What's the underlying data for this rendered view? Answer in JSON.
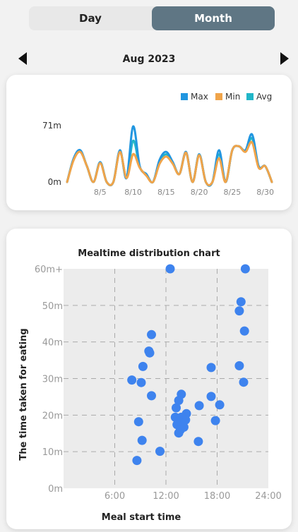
{
  "tabs": {
    "day": "Day",
    "month": "Month"
  },
  "period": {
    "label": "Aug 2023"
  },
  "chart_data": [
    {
      "type": "line",
      "legend": {
        "placement": "top-right",
        "items": [
          "Max",
          "Min",
          "Avg"
        ]
      },
      "colors": {
        "Max": "#2196e0",
        "Min": "#f0a44a",
        "Avg": "#21b6c8"
      },
      "y_tick_labels": [
        "71m",
        "0m"
      ],
      "ylim": [
        0,
        71
      ],
      "x_tick_labels": [
        "8/5",
        "8/10",
        "8/15",
        "8/20",
        "8/25",
        "8/30"
      ],
      "x_ticks": [
        5,
        10,
        15,
        20,
        25,
        30
      ],
      "xlim": [
        0,
        31
      ],
      "x": [
        0,
        1,
        2,
        3,
        4,
        5,
        6,
        7,
        8,
        9,
        10,
        11,
        12,
        13,
        14,
        15,
        16,
        17,
        18,
        19,
        20,
        21,
        22,
        23,
        24,
        25,
        26,
        27,
        28,
        29,
        30,
        31
      ],
      "series": [
        {
          "name": "Max",
          "values": [
            0,
            30,
            40,
            20,
            0,
            25,
            0,
            0,
            40,
            5,
            70,
            20,
            10,
            0,
            28,
            38,
            25,
            10,
            38,
            0,
            35,
            0,
            0,
            40,
            0,
            40,
            45,
            40,
            60,
            20,
            20,
            0
          ]
        },
        {
          "name": "Min",
          "values": [
            0,
            28,
            38,
            20,
            0,
            24,
            0,
            0,
            38,
            5,
            35,
            18,
            8,
            0,
            23,
            32,
            23,
            10,
            37,
            0,
            34,
            0,
            0,
            30,
            0,
            40,
            45,
            38,
            50,
            18,
            20,
            0
          ]
        },
        {
          "name": "Avg",
          "values": [
            0,
            29,
            39,
            20,
            0,
            25,
            0,
            0,
            39,
            5,
            52,
            19,
            9,
            0,
            25,
            35,
            24,
            10,
            37,
            0,
            35,
            0,
            0,
            35,
            0,
            40,
            45,
            39,
            55,
            19,
            20,
            0
          ]
        }
      ]
    },
    {
      "type": "scatter",
      "title": "Mealtime distribution chart",
      "xlabel": "Meal start time",
      "ylabel": "The time taken for eating",
      "x_tick_labels": [
        "6:00",
        "12:00",
        "18:00",
        "24:00"
      ],
      "x_ticks": [
        6,
        12,
        18,
        24
      ],
      "xlim": [
        0,
        24
      ],
      "y_tick_labels": [
        "0m",
        "10m",
        "20m",
        "30m",
        "40m",
        "50m",
        "60m+"
      ],
      "y_ticks": [
        0,
        10,
        20,
        30,
        40,
        50,
        60
      ],
      "ylim": [
        0,
        60
      ],
      "grid": true,
      "color": "#3e83ee",
      "points": [
        [
          12.5,
          60
        ],
        [
          21.3,
          60
        ],
        [
          20.8,
          51
        ],
        [
          20.6,
          48.5
        ],
        [
          21.2,
          43
        ],
        [
          10.3,
          42
        ],
        [
          10.0,
          37.5
        ],
        [
          10.1,
          37
        ],
        [
          9.3,
          33.3
        ],
        [
          17.3,
          33
        ],
        [
          20.6,
          33.5
        ],
        [
          8.0,
          29.6
        ],
        [
          9.1,
          28.9
        ],
        [
          21.1,
          29
        ],
        [
          10.3,
          25.3
        ],
        [
          13.8,
          25.7
        ],
        [
          17.3,
          25.1
        ],
        [
          13.5,
          24
        ],
        [
          18.3,
          22.8
        ],
        [
          15.9,
          22.6
        ],
        [
          13.2,
          22
        ],
        [
          14.4,
          20.4
        ],
        [
          13.1,
          19.4
        ],
        [
          13.8,
          19.4
        ],
        [
          14.3,
          18.7
        ],
        [
          13.6,
          18.1
        ],
        [
          17.8,
          18.5
        ],
        [
          13.3,
          17.4
        ],
        [
          8.8,
          18.2
        ],
        [
          14.1,
          16.7
        ],
        [
          13.7,
          16
        ],
        [
          13.5,
          15.1
        ],
        [
          15.8,
          12.8
        ],
        [
          9.2,
          13.1
        ],
        [
          11.3,
          10.1
        ],
        [
          8.6,
          7.6
        ]
      ]
    }
  ]
}
